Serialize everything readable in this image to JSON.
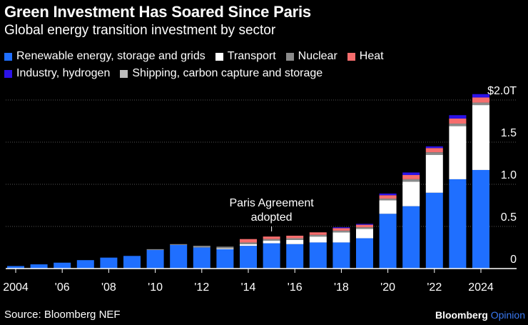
{
  "header": {
    "title": "Green Investment Has Soared Since Paris",
    "subtitle": "Global energy transition investment by sector"
  },
  "footer": {
    "source": "Source: Bloomberg NEF",
    "brand_main": "Bloomberg",
    "brand_sub": "Opinion"
  },
  "colors": {
    "background": "#000000",
    "renewable": "#1f6fff",
    "transport": "#ffffff",
    "nuclear": "#8a8a8a",
    "heat": "#f76d6d",
    "industry": "#2b12e8",
    "shipping": "#bdbdbd",
    "gridline": "#555555"
  },
  "chart_data": {
    "type": "bar",
    "stacked": true,
    "title": "Green Investment Has Soared Since Paris",
    "subtitle": "Global energy transition investment by sector",
    "ylabel": "",
    "xlabel": "",
    "ylim": [
      0,
      2.0
    ],
    "yticks": [
      {
        "value": 0,
        "label": "0"
      },
      {
        "value": 0.5,
        "label": "0.5"
      },
      {
        "value": 1.0,
        "label": "1.0"
      },
      {
        "value": 1.5,
        "label": "1.5"
      },
      {
        "value": 2.0,
        "label": "$2.0T"
      }
    ],
    "x_tick_labels": [
      {
        "year": 2004,
        "label": "2004"
      },
      {
        "year": 2006,
        "label": "'06"
      },
      {
        "year": 2008,
        "label": "'08"
      },
      {
        "year": 2010,
        "label": "'10"
      },
      {
        "year": 2012,
        "label": "'12"
      },
      {
        "year": 2014,
        "label": "'14"
      },
      {
        "year": 2016,
        "label": "'16"
      },
      {
        "year": 2018,
        "label": "'18"
      },
      {
        "year": 2020,
        "label": "'20"
      },
      {
        "year": 2022,
        "label": "'22"
      },
      {
        "year": 2024,
        "label": "2024"
      }
    ],
    "grid": true,
    "legend_position": "top",
    "categories": [
      2004,
      2005,
      2006,
      2007,
      2008,
      2009,
      2010,
      2011,
      2012,
      2013,
      2014,
      2015,
      2016,
      2017,
      2018,
      2019,
      2020,
      2021,
      2022,
      2023,
      2024
    ],
    "series": [
      {
        "name": "Renewable energy, storage and grids",
        "color_key": "renewable",
        "values": [
          0.03,
          0.05,
          0.07,
          0.1,
          0.13,
          0.15,
          0.22,
          0.28,
          0.25,
          0.23,
          0.27,
          0.3,
          0.29,
          0.31,
          0.31,
          0.36,
          0.65,
          0.74,
          0.9,
          1.06,
          1.17
        ]
      },
      {
        "name": "Transport",
        "color_key": "transport",
        "values": [
          0,
          0,
          0,
          0,
          0,
          0,
          0,
          0,
          0,
          0.01,
          0.02,
          0.03,
          0.05,
          0.07,
          0.12,
          0.11,
          0.16,
          0.29,
          0.45,
          0.63,
          0.77
        ]
      },
      {
        "name": "Nuclear",
        "color_key": "nuclear",
        "values": [
          0,
          0,
          0,
          0,
          0,
          0,
          0.01,
          0.01,
          0.02,
          0.02,
          0.02,
          0.02,
          0.02,
          0.02,
          0.02,
          0.02,
          0.02,
          0.03,
          0.03,
          0.03,
          0.03
        ]
      },
      {
        "name": "Heat",
        "color_key": "heat",
        "values": [
          0,
          0,
          0,
          0,
          0,
          0,
          0,
          0,
          0,
          0,
          0.04,
          0.03,
          0.03,
          0.03,
          0.03,
          0.03,
          0.04,
          0.05,
          0.05,
          0.06,
          0.06
        ]
      },
      {
        "name": "Industry, hydrogen",
        "color_key": "industry",
        "values": [
          0,
          0,
          0,
          0,
          0,
          0,
          0,
          0,
          0,
          0,
          0,
          0,
          0,
          0,
          0.01,
          0.01,
          0.02,
          0.03,
          0.02,
          0.04,
          0.04
        ]
      },
      {
        "name": "Shipping, carbon capture and storage",
        "color_key": "shipping",
        "values": [
          0,
          0,
          0,
          0,
          0,
          0,
          0,
          0,
          0,
          0,
          0,
          0,
          0,
          0,
          0,
          0,
          0,
          0,
          0,
          0,
          0
        ]
      }
    ],
    "annotations": [
      {
        "text_lines": [
          "Paris Agreement",
          "adopted"
        ],
        "year": 2015
      }
    ]
  }
}
